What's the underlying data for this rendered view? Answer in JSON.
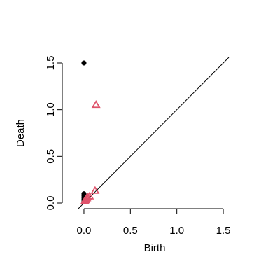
{
  "chart_data": {
    "type": "scatter",
    "title": "",
    "xlabel": "Birth",
    "ylabel": "Death",
    "xlim": [
      -0.06,
      1.56
    ],
    "ylim": [
      -0.06,
      1.56
    ],
    "x_ticks": [
      "0.0",
      "0.5",
      "1.0",
      "1.5"
    ],
    "y_ticks": [
      "0.0",
      "0.5",
      "1.0",
      "1.5"
    ],
    "grid": false,
    "legend": "none",
    "diagonal_line": true,
    "series": [
      {
        "marker": "filled-circle",
        "color": "#000000",
        "points": [
          {
            "x": 0.0,
            "y": 1.5
          },
          {
            "x": 0.0,
            "y": 0.1
          },
          {
            "x": 0.0,
            "y": 0.08
          },
          {
            "x": 0.0,
            "y": 0.06
          },
          {
            "x": 0.0,
            "y": 0.04
          },
          {
            "x": 0.0,
            "y": 0.02
          }
        ]
      },
      {
        "marker": "open-triangle",
        "color": "#DF536B",
        "points": [
          {
            "x": 0.13,
            "y": 1.05
          },
          {
            "x": 0.12,
            "y": 0.13
          },
          {
            "x": 0.06,
            "y": 0.07
          },
          {
            "x": 0.04,
            "y": 0.06
          },
          {
            "x": 0.03,
            "y": 0.05
          },
          {
            "x": 0.02,
            "y": 0.04
          },
          {
            "x": 0.02,
            "y": 0.03
          },
          {
            "x": 0.01,
            "y": 0.02
          }
        ]
      }
    ]
  }
}
